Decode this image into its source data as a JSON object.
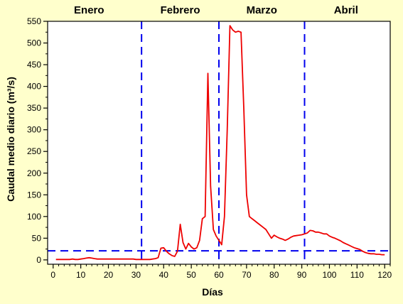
{
  "chart_data": {
    "type": "line",
    "xlabel": "Días",
    "ylabel": "Caudal medio diario (m³/s)",
    "xlim": [
      -2,
      122
    ],
    "ylim": [
      -10,
      550
    ],
    "x_ticks": [
      0,
      10,
      20,
      30,
      40,
      50,
      60,
      70,
      80,
      90,
      100,
      110,
      120
    ],
    "y_ticks": [
      0,
      50,
      100,
      150,
      200,
      250,
      300,
      350,
      400,
      450,
      500,
      550
    ],
    "x_minor_step": 2,
    "y_minor_step": 25,
    "grid": false,
    "months": [
      {
        "label": "Enero",
        "center": 13
      },
      {
        "label": "Febrero",
        "center": 46
      },
      {
        "label": "Marzo",
        "center": 75.5
      },
      {
        "label": "Abril",
        "center": 106
      }
    ],
    "month_dividers": [
      32,
      60,
      91
    ],
    "threshold": 21,
    "colors": {
      "series": "#ee0000",
      "reference": "#0000ee",
      "background": "#ffffcc",
      "plot": "#ffffff"
    },
    "series": [
      {
        "color": "#ee0000",
        "x": [
          1,
          2,
          3,
          4,
          5,
          6,
          7,
          8,
          9,
          10,
          11,
          12,
          13,
          14,
          15,
          16,
          17,
          18,
          19,
          20,
          21,
          22,
          23,
          24,
          25,
          26,
          27,
          28,
          29,
          30,
          31,
          32,
          33,
          34,
          35,
          36,
          37,
          38,
          39,
          40,
          41,
          42,
          43,
          44,
          45,
          46,
          47,
          48,
          49,
          50,
          51,
          52,
          53,
          54,
          55,
          56,
          57,
          58,
          59,
          60,
          61,
          62,
          63,
          64,
          65,
          66,
          67,
          68,
          69,
          70,
          71,
          72,
          73,
          74,
          75,
          76,
          77,
          78,
          79,
          80,
          81,
          82,
          83,
          84,
          85,
          86,
          87,
          88,
          89,
          90,
          91,
          92,
          93,
          94,
          95,
          96,
          97,
          98,
          99,
          100,
          101,
          102,
          103,
          104,
          105,
          106,
          107,
          108,
          109,
          110,
          111,
          112,
          113,
          114,
          115,
          116,
          117,
          118,
          119,
          120
        ],
        "y": [
          1,
          1,
          1,
          1,
          1,
          1,
          2,
          1,
          1,
          2,
          3,
          4,
          5,
          4,
          3,
          2,
          2,
          2,
          2,
          2,
          2,
          2,
          2,
          2,
          2,
          2,
          2,
          2,
          2,
          1,
          1,
          1,
          1,
          1,
          1,
          2,
          3,
          5,
          27,
          28,
          20,
          14,
          10,
          8,
          20,
          82,
          40,
          25,
          38,
          30,
          25,
          28,
          45,
          95,
          100,
          430,
          170,
          70,
          55,
          45,
          35,
          100,
          300,
          540,
          530,
          525,
          527,
          525,
          350,
          150,
          100,
          95,
          90,
          85,
          80,
          75,
          70,
          60,
          50,
          57,
          53,
          50,
          48,
          45,
          48,
          52,
          55,
          56,
          57,
          58,
          60,
          62,
          68,
          67,
          64,
          64,
          62,
          60,
          60,
          55,
          52,
          50,
          47,
          44,
          40,
          37,
          34,
          31,
          28,
          26,
          24,
          20,
          17,
          15,
          14,
          14,
          13,
          13,
          12,
          12
        ]
      }
    ]
  }
}
